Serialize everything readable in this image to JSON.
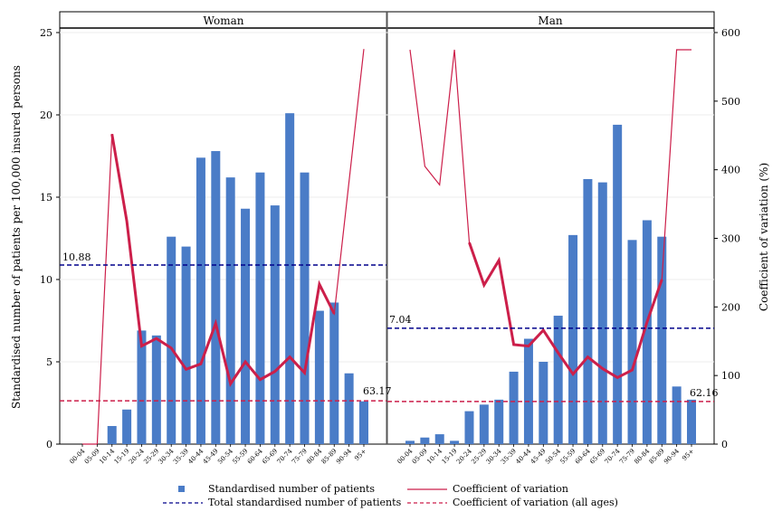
{
  "chart_data": {
    "type": "bar+line",
    "categories": [
      "00-04",
      "05-09",
      "10-14",
      "15-19",
      "20-24",
      "25-29",
      "30-34",
      "35-39",
      "40-44",
      "45-49",
      "50-54",
      "55-59",
      "60-64",
      "65-69",
      "70-74",
      "75-79",
      "80-84",
      "85-89",
      "90-94",
      "95+"
    ],
    "ylabel_left": "Standardised number of patients per 100,000 insured persons",
    "ylabel_right": "Coefficient of variation (%)",
    "ylim_left": [
      0,
      25
    ],
    "ylim_right": [
      0,
      600
    ],
    "yticks_left": [
      "0",
      "5",
      "10",
      "15",
      "20",
      "25"
    ],
    "yticks_right": [
      "0",
      "100",
      "200",
      "300",
      "400",
      "500",
      "600"
    ],
    "colors": {
      "bars": "#4a7cc7",
      "cv": "#cc1f4a",
      "total": "#00008b",
      "cv_all": "#cc1f4a"
    },
    "panels": [
      {
        "title": "Woman",
        "bars": [
          0,
          0,
          1.1,
          2.1,
          6.9,
          6.6,
          12.6,
          12.0,
          17.4,
          17.8,
          16.2,
          14.3,
          16.5,
          14.5,
          20.1,
          16.5,
          8.1,
          8.6,
          4.3,
          2.6
        ],
        "cv": [
          0,
          0,
          452,
          325,
          143,
          154,
          140,
          109,
          117,
          176,
          88,
          120,
          94,
          106,
          127,
          104,
          233,
          190,
          null,
          576
        ],
        "total": 10.88,
        "total_label": "10.88",
        "cv_all": 63.17,
        "cv_all_label": "63.17"
      },
      {
        "title": "Man",
        "bars": [
          0.2,
          0.4,
          0.6,
          0.2,
          2.0,
          2.4,
          2.7,
          4.4,
          6.4,
          5.0,
          7.8,
          12.7,
          16.1,
          15.9,
          19.4,
          12.4,
          13.6,
          12.6,
          3.5,
          2.7
        ],
        "cv": [
          575,
          405,
          378,
          575,
          294,
          232,
          268,
          145,
          143,
          166,
          133,
          102,
          127,
          110,
          97,
          108,
          178,
          240,
          575,
          575
        ],
        "total": 7.04,
        "total_label": "7.04",
        "cv_all": 62.16,
        "cv_all_label": "62.16"
      }
    ],
    "legend": [
      {
        "label": "Standardised number of patients",
        "kind": "marker"
      },
      {
        "label": "Coefficient of variation",
        "kind": "line"
      },
      {
        "label": "Total standardised number of patients",
        "kind": "dash-blue"
      },
      {
        "label": "Coefficient of variation (all ages)",
        "kind": "dash-red"
      }
    ]
  }
}
